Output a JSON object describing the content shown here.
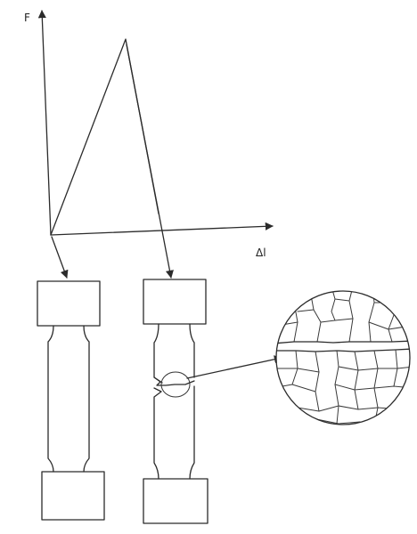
{
  "diagram": {
    "y_axis_label": "F",
    "x_axis_label": "Δl",
    "line_color": "#2b2b2b",
    "background_color": "#ffffff"
  }
}
